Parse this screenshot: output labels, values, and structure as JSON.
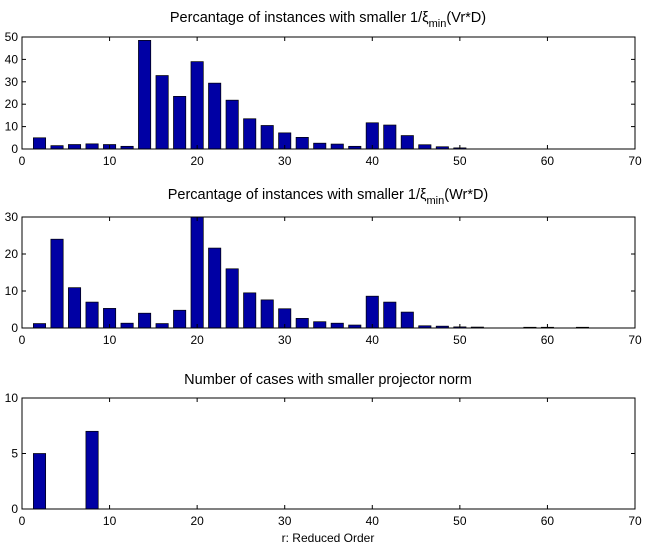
{
  "chart_data": [
    {
      "type": "bar",
      "title": "Percantage of instances with smaller 1/",
      "title_symbol": "ξ",
      "title_sub": "min",
      "title_tail": "(Vr*D)",
      "xlabel": "",
      "ylabel": "",
      "xlim": [
        0,
        70
      ],
      "ylim": [
        0,
        50
      ],
      "xticks": [
        0,
        10,
        20,
        30,
        40,
        50,
        60,
        70
      ],
      "yticks": [
        0,
        10,
        20,
        30,
        40,
        50
      ],
      "bar_color": "#0000a4",
      "x": [
        2,
        4,
        6,
        8,
        10,
        12,
        14,
        16,
        18,
        20,
        22,
        24,
        26,
        28,
        30,
        32,
        34,
        36,
        38,
        40,
        42,
        44,
        46,
        48,
        50
      ],
      "values": [
        5,
        1.5,
        2,
        2.3,
        2,
        1.2,
        48.5,
        32.8,
        23.5,
        39,
        29.4,
        21.8,
        13.5,
        10.5,
        7.2,
        5.2,
        2.6,
        2.2,
        1.2,
        11.7,
        10.7,
        6,
        1.9,
        1,
        0.5
      ]
    },
    {
      "type": "bar",
      "title": "Percantage of instances with smaller 1/",
      "title_symbol": "ξ",
      "title_sub": "min",
      "title_tail": "(Wr*D)",
      "xlabel": "",
      "ylabel": "",
      "xlim": [
        0,
        70
      ],
      "ylim": [
        0,
        30
      ],
      "xticks": [
        0,
        10,
        20,
        30,
        40,
        50,
        60,
        70
      ],
      "yticks": [
        0,
        10,
        20,
        30
      ],
      "bar_color": "#0000a4",
      "x": [
        2,
        4,
        6,
        8,
        10,
        12,
        14,
        16,
        18,
        20,
        22,
        24,
        26,
        28,
        30,
        32,
        34,
        36,
        38,
        40,
        42,
        44,
        46,
        48,
        50,
        52,
        58,
        60,
        64
      ],
      "values": [
        1.2,
        24,
        10.9,
        7,
        5.3,
        1.3,
        4,
        1.2,
        4.8,
        30,
        21.6,
        16,
        9.5,
        7.6,
        5.2,
        2.6,
        1.7,
        1.3,
        0.8,
        8.6,
        7,
        4.3,
        0.6,
        0.5,
        0.3,
        0.25,
        0.2,
        0.2,
        0.2
      ]
    },
    {
      "type": "bar",
      "title": "Number of cases with smaller projector norm",
      "title_symbol": "",
      "title_sub": "",
      "title_tail": "",
      "xlabel": "r: Reduced Order",
      "ylabel": "",
      "xlim": [
        0,
        70
      ],
      "ylim": [
        0,
        10
      ],
      "xticks": [
        0,
        10,
        20,
        30,
        40,
        50,
        60,
        70
      ],
      "yticks": [
        0,
        5,
        10
      ],
      "bar_color": "#0000a4",
      "x": [
        2,
        8
      ],
      "values": [
        5,
        7
      ]
    }
  ]
}
